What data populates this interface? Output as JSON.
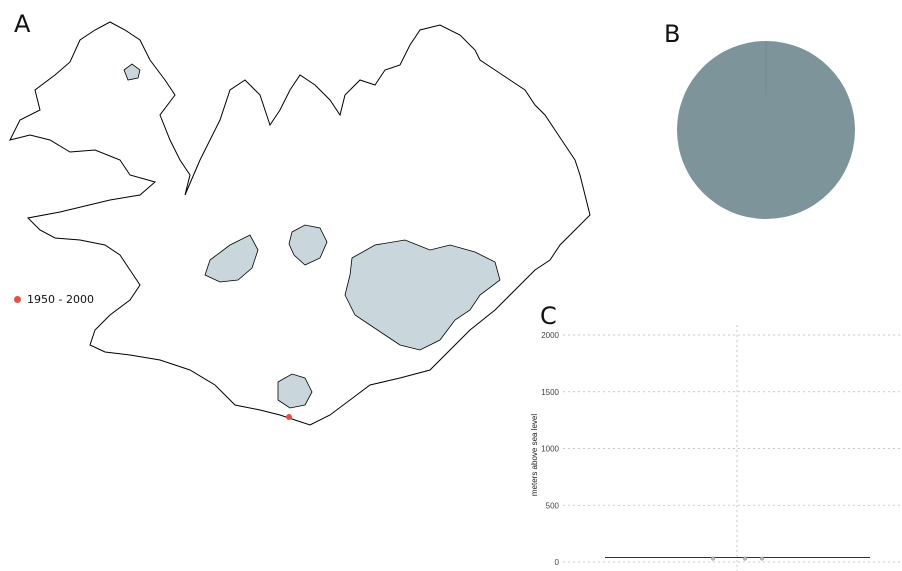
{
  "panels": {
    "a": "A",
    "b": "B",
    "c": "C"
  },
  "colors": {
    "coast": "#000000",
    "glacier": "#c9d7dd",
    "point": "#e0514a",
    "pie": "#7d949b",
    "grid": "#bbbbbb"
  },
  "legend": {
    "label": "1950 - 2000",
    "color": "#e0514a"
  },
  "chart_data": [
    {
      "panel": "A",
      "type": "scatter",
      "description_type": "map",
      "series": [
        {
          "name": "1950 - 2000",
          "points_count": 1
        }
      ]
    },
    {
      "panel": "B",
      "type": "pie",
      "categories": [
        "1950 - 2000"
      ],
      "values": [
        1
      ],
      "colors": [
        "#7d949b"
      ]
    },
    {
      "panel": "C",
      "type": "scatter",
      "xlabel": "",
      "ylabel": "meters above sea level",
      "ylim": [
        0,
        2000
      ],
      "y_ticks": [
        "0",
        "500",
        "1000",
        "1500",
        "2000"
      ],
      "grid": true,
      "points_y": [
        30,
        30,
        30
      ],
      "baseline_y": 40
    }
  ]
}
